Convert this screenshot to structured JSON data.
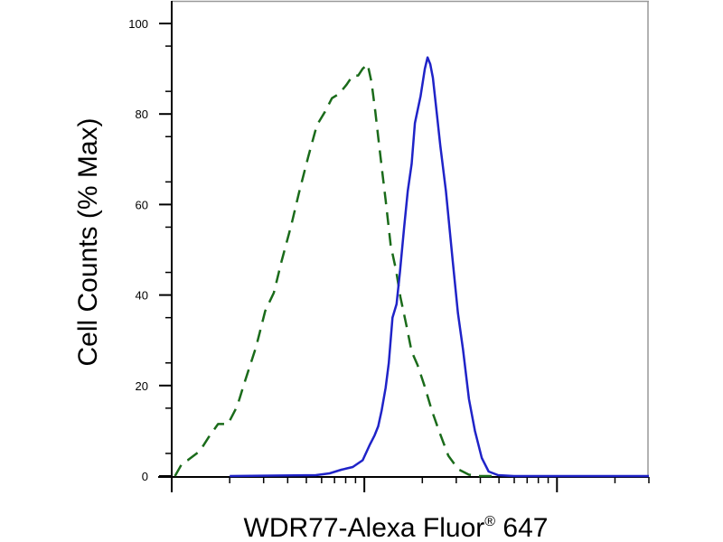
{
  "chart_data": {
    "type": "line",
    "title": "",
    "xlabel": "WDR77-Alexa Fluor",
    "xlabel_reg": "®",
    "xlabel_suffix": " 647",
    "ylabel": "Cell Counts (% Max)",
    "x_scale": "log",
    "x_tick_labels": false,
    "xlim": [
      1,
      300
    ],
    "ylim": [
      0,
      100
    ],
    "y_ticks": [
      0,
      20,
      40,
      60,
      80,
      100
    ],
    "y_tick_labels": [
      "0",
      "20",
      "40",
      "60",
      "80",
      "100"
    ],
    "grid": false,
    "legend": "none",
    "series": [
      {
        "style": "dashed",
        "color": "#1a6b1a",
        "x": [
          1.04,
          1.14,
          1.21,
          1.4,
          1.55,
          1.74,
          1.96,
          2.19,
          2.38,
          2.74,
          3.06,
          3.39,
          3.72,
          4.18,
          4.57,
          5.11,
          5.67,
          6.25,
          6.79,
          7.4,
          8.1,
          8.7,
          9.3,
          9.8,
          10.4,
          10.9,
          11.4,
          11.9,
          12.4,
          12.9,
          13.7,
          14.6,
          15.4,
          16.5,
          17.6,
          18.9,
          20.5,
          22.4,
          24.4,
          27.3,
          30.7,
          34.9,
          39.9,
          44.4,
          48.9
        ],
        "y": [
          0,
          3.0,
          3.5,
          5.5,
          8.5,
          11.5,
          11.5,
          15.5,
          20.5,
          28.5,
          36.5,
          40.5,
          47.5,
          55.5,
          62.5,
          70.5,
          77.5,
          80.5,
          83.5,
          84.5,
          86.5,
          88.5,
          88.5,
          90.0,
          91.0,
          87.0,
          80.5,
          73.5,
          67.0,
          61.0,
          51.0,
          45.5,
          39.5,
          33.5,
          27.5,
          24.5,
          20.0,
          14.5,
          10.0,
          4.5,
          1.5,
          0.3,
          0,
          0,
          0
        ]
      },
      {
        "style": "solid",
        "color": "#1f23c8",
        "x": [
          2.0,
          5.6,
          6.6,
          7.6,
          8.7,
          9.8,
          10.7,
          11.3,
          11.8,
          12.3,
          12.9,
          13.4,
          14.0,
          14.7,
          15.3,
          16.1,
          16.8,
          17.6,
          18.3,
          19.6,
          20.6,
          21.3,
          22.0,
          22.7,
          23.8,
          24.8,
          26.5,
          28.7,
          30.6,
          32.5,
          34.9,
          37.5,
          40.7,
          44.2,
          49.5,
          59.7,
          300
        ],
        "y": [
          0,
          0.2,
          0.6,
          1.4,
          2.0,
          3.5,
          7.0,
          9.0,
          11.0,
          14.5,
          19.5,
          25.0,
          35.0,
          38.0,
          45.0,
          55.0,
          63.0,
          69.0,
          78.0,
          84.0,
          90.0,
          92.5,
          91.0,
          88.0,
          80.0,
          73.0,
          63.0,
          48.0,
          36.0,
          28.0,
          17.0,
          10.0,
          4.0,
          1.0,
          0.2,
          0,
          0
        ]
      }
    ]
  }
}
